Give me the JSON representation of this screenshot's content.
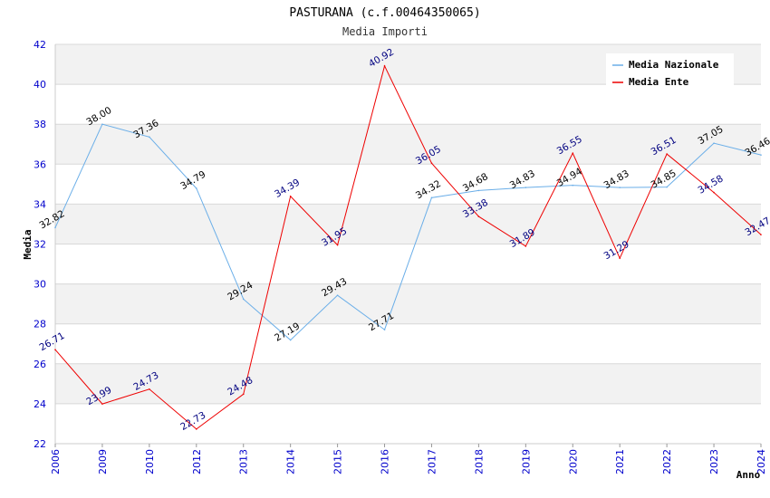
{
  "chart_data": {
    "type": "line",
    "title": "PASTURANA (c.f.00464350065)",
    "subtitle": "Media Importi",
    "xlabel": "Anno",
    "ylabel": "Media",
    "ylim": [
      22,
      42
    ],
    "yticks": [
      "22",
      "24",
      "26",
      "28",
      "30",
      "32",
      "34",
      "36",
      "38",
      "40",
      "42"
    ],
    "categories": [
      "2006",
      "2009",
      "2010",
      "2012",
      "2013",
      "2014",
      "2015",
      "2016",
      "2017",
      "2018",
      "2019",
      "2020",
      "2021",
      "2022",
      "2023",
      "2024"
    ],
    "series": [
      {
        "name": "Media Nazionale",
        "color": "#6aaee8",
        "label_color": "#000000",
        "values": [
          32.82,
          38.0,
          37.36,
          34.79,
          29.24,
          27.19,
          29.43,
          27.71,
          34.32,
          34.68,
          34.83,
          34.94,
          34.83,
          34.85,
          37.05,
          36.46
        ],
        "labels": [
          "32.82",
          "38.00",
          "37.36",
          "34.79",
          "29.24",
          "27.19",
          "29.43",
          "27.71",
          "34.32",
          "34.68",
          "34.83",
          "34.94",
          "34.83",
          "34.85",
          "37.05",
          "36.46"
        ]
      },
      {
        "name": "Media Ente",
        "color": "#ee0000",
        "label_color": "#000080",
        "values": [
          26.71,
          23.99,
          24.73,
          22.73,
          24.48,
          34.39,
          31.95,
          40.92,
          36.05,
          33.38,
          31.89,
          36.55,
          31.29,
          36.51,
          34.58,
          32.47
        ],
        "labels": [
          "26.71",
          "23.99",
          "24.73",
          "22.73",
          "24.48",
          "34.39",
          "31.95",
          "40.92",
          "36.05",
          "33.38",
          "31.89",
          "36.55",
          "31.29",
          "36.51",
          "34.58",
          "32.47"
        ]
      }
    ],
    "legend_position": "top-right",
    "grid": true
  }
}
